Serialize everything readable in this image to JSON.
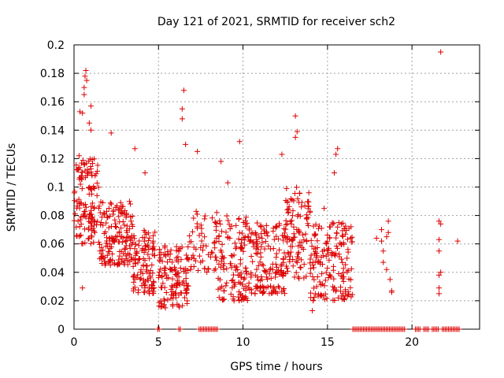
{
  "chart_data": {
    "type": "scatter",
    "title": "Day 121 of 2021, SRMTID for receiver sch2",
    "xlabel": "GPS time / hours",
    "ylabel": "SRMTID / TECUs",
    "xlim": [
      0,
      24
    ],
    "ylim": [
      0,
      0.2
    ],
    "xticks": [
      0,
      5,
      10,
      15,
      20
    ],
    "yticks": [
      0,
      0.02,
      0.04,
      0.06,
      0.08,
      0.1,
      0.12,
      0.14,
      0.16,
      0.18,
      0.2
    ],
    "ytick_labels": [
      "0",
      "0.02",
      "0.04",
      "0.06",
      "0.08",
      "0.1",
      "0.12",
      "0.14",
      "0.16",
      "0.18",
      "0.2"
    ],
    "grid": true,
    "marker": "+",
    "series": [
      {
        "name": "SRMTID",
        "color": "#dd0000",
        "clusters": [
          {
            "x_start": 0.0,
            "x_end": 1.5,
            "y_min": 0.06,
            "y_max": 0.12,
            "count": 130
          },
          {
            "x_start": 1.5,
            "x_end": 3.5,
            "y_min": 0.045,
            "y_max": 0.09,
            "count": 160
          },
          {
            "x_start": 3.5,
            "x_end": 4.8,
            "y_min": 0.025,
            "y_max": 0.07,
            "count": 110
          },
          {
            "x_start": 5.0,
            "x_end": 6.8,
            "y_min": 0.015,
            "y_max": 0.06,
            "count": 130
          },
          {
            "x_start": 6.8,
            "x_end": 8.5,
            "y_min": 0.04,
            "y_max": 0.085,
            "count": 60
          },
          {
            "x_start": 8.5,
            "x_end": 10.5,
            "y_min": 0.02,
            "y_max": 0.08,
            "count": 140
          },
          {
            "x_start": 10.5,
            "x_end": 12.5,
            "y_min": 0.025,
            "y_max": 0.075,
            "count": 140
          },
          {
            "x_start": 12.5,
            "x_end": 14.0,
            "y_min": 0.035,
            "y_max": 0.1,
            "count": 110
          },
          {
            "x_start": 14.0,
            "x_end": 16.5,
            "y_min": 0.02,
            "y_max": 0.075,
            "count": 170
          }
        ],
        "outliers": [
          [
            0.35,
            0.153
          ],
          [
            0.5,
            0.152
          ],
          [
            0.6,
            0.17
          ],
          [
            0.65,
            0.178
          ],
          [
            0.7,
            0.182
          ],
          [
            0.75,
            0.175
          ],
          [
            0.6,
            0.165
          ],
          [
            1.0,
            0.157
          ],
          [
            0.9,
            0.145
          ],
          [
            1.0,
            0.14
          ],
          [
            0.3,
            0.122
          ],
          [
            0.5,
            0.029
          ],
          [
            2.2,
            0.138
          ],
          [
            3.6,
            0.127
          ],
          [
            4.2,
            0.11
          ],
          [
            6.5,
            0.168
          ],
          [
            6.4,
            0.155
          ],
          [
            6.4,
            0.148
          ],
          [
            6.6,
            0.13
          ],
          [
            7.3,
            0.125
          ],
          [
            8.7,
            0.118
          ],
          [
            9.1,
            0.103
          ],
          [
            9.8,
            0.132
          ],
          [
            12.3,
            0.123
          ],
          [
            13.1,
            0.15
          ],
          [
            13.2,
            0.139
          ],
          [
            13.1,
            0.135
          ],
          [
            15.6,
            0.127
          ],
          [
            15.5,
            0.123
          ],
          [
            15.4,
            0.11
          ],
          [
            14.1,
            0.013
          ],
          [
            14.8,
            0.085
          ],
          [
            17.9,
            0.064
          ],
          [
            18.2,
            0.07
          ],
          [
            18.2,
            0.062
          ],
          [
            18.3,
            0.055
          ],
          [
            18.3,
            0.047
          ],
          [
            18.5,
            0.065
          ],
          [
            18.6,
            0.076
          ],
          [
            18.6,
            0.068
          ],
          [
            18.5,
            0.042
          ],
          [
            18.7,
            0.035
          ],
          [
            18.8,
            0.027
          ],
          [
            18.8,
            0.026
          ],
          [
            21.6,
            0.076
          ],
          [
            21.7,
            0.074
          ],
          [
            21.6,
            0.063
          ],
          [
            21.6,
            0.055
          ],
          [
            21.7,
            0.04
          ],
          [
            21.6,
            0.038
          ],
          [
            21.6,
            0.025
          ],
          [
            21.6,
            0.029
          ],
          [
            21.7,
            0.195
          ],
          [
            22.7,
            0.062
          ]
        ],
        "zero_segments": [
          [
            4.95,
            5.1
          ],
          [
            6.2,
            6.3
          ],
          [
            7.4,
            8.5
          ],
          [
            16.5,
            19.6
          ],
          [
            20.2,
            20.5
          ],
          [
            20.7,
            21.0
          ],
          [
            21.2,
            21.6
          ],
          [
            21.8,
            22.8
          ]
        ]
      }
    ]
  }
}
